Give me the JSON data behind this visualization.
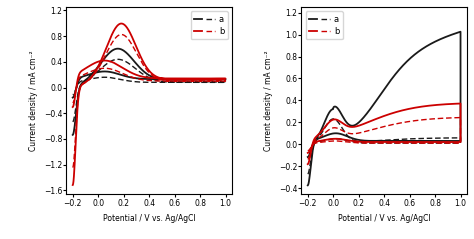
{
  "left_plot": {
    "xlim": [
      -0.25,
      1.05
    ],
    "ylim": [
      -1.65,
      1.25
    ],
    "xticks": [
      -0.2,
      0.0,
      0.2,
      0.4,
      0.6,
      0.8,
      1.0
    ],
    "yticks": [
      -1.6,
      -1.2,
      -0.8,
      -0.4,
      0.0,
      0.4,
      0.8,
      1.2
    ],
    "xlabel": "Potential / V vs. Ag/AgCl",
    "ylabel": "Current density / mA cm⁻²"
  },
  "right_plot": {
    "xlim": [
      -0.25,
      1.05
    ],
    "ylim": [
      -0.45,
      1.25
    ],
    "xticks": [
      -0.2,
      0.0,
      0.2,
      0.4,
      0.6,
      0.8,
      1.0
    ],
    "yticks": [
      -0.4,
      -0.2,
      0.0,
      0.2,
      0.4,
      0.6,
      0.8,
      1.0,
      1.2
    ],
    "xlabel": "Potential / V vs. Ag/AgCl",
    "ylabel": "Current density / mA cm⁻²"
  },
  "colors": {
    "black_solid": "#1a1a1a",
    "black_dashed": "#1a1a1a",
    "red_solid": "#cc0000",
    "red_dashed": "#cc0000"
  },
  "legend": {
    "a_label": "a",
    "b_label": "b"
  }
}
